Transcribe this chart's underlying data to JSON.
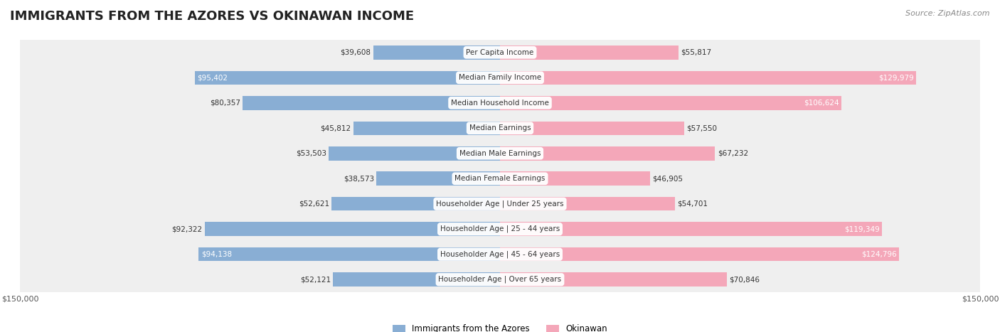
{
  "title": "IMMIGRANTS FROM THE AZORES VS OKINAWAN INCOME",
  "source": "Source: ZipAtlas.com",
  "categories": [
    "Per Capita Income",
    "Median Family Income",
    "Median Household Income",
    "Median Earnings",
    "Median Male Earnings",
    "Median Female Earnings",
    "Householder Age | Under 25 years",
    "Householder Age | 25 - 44 years",
    "Householder Age | 45 - 64 years",
    "Householder Age | Over 65 years"
  ],
  "azores_values": [
    39608,
    95402,
    80357,
    45812,
    53503,
    38573,
    52621,
    92322,
    94138,
    52121
  ],
  "okinawan_values": [
    55817,
    129979,
    106624,
    57550,
    67232,
    46905,
    54701,
    119349,
    124796,
    70846
  ],
  "azores_labels": [
    "$39,608",
    "$95,402",
    "$80,357",
    "$45,812",
    "$53,503",
    "$38,573",
    "$52,621",
    "$92,322",
    "$94,138",
    "$52,121"
  ],
  "okinawan_labels": [
    "$55,817",
    "$129,979",
    "$106,624",
    "$57,550",
    "$67,232",
    "$46,905",
    "$54,701",
    "$119,349",
    "$124,796",
    "$70,846"
  ],
  "azores_color": "#89aed4",
  "okinawan_color": "#f4a7b9",
  "azores_color_dark": "#5b8ec4",
  "okinawan_color_dark": "#e87fa0",
  "max_value": 150000,
  "bar_height": 0.55,
  "row_bg_color": "#f0f0f0",
  "label_bg_color": "#ffffff",
  "background_color": "#ffffff"
}
